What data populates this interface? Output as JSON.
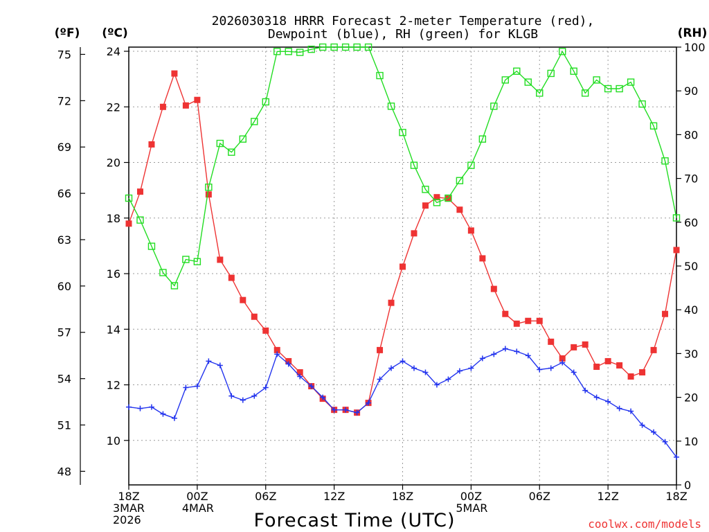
{
  "chart_data": {
    "type": "line",
    "title_line1": "2026030318 HRRR Forecast 2-meter Temperature (red),",
    "title_line2": "Dewpoint (blue), RH (green) for KLGB",
    "xlabel": "Forecast Time (UTC)",
    "credit": "coolwx.com/models",
    "units": {
      "fahrenheit": "(ºF)",
      "celsius": "(ºC)",
      "rh": "(RH)"
    },
    "x_hours": {
      "start": 0,
      "end": 48,
      "step": 1
    },
    "x_ticks": [
      {
        "hour": 0,
        "lines": [
          "18Z",
          "3MAR",
          "2026"
        ]
      },
      {
        "hour": 6,
        "lines": [
          "00Z",
          "4MAR"
        ]
      },
      {
        "hour": 12,
        "lines": [
          "06Z"
        ]
      },
      {
        "hour": 18,
        "lines": [
          "12Z"
        ]
      },
      {
        "hour": 24,
        "lines": [
          "18Z"
        ]
      },
      {
        "hour": 30,
        "lines": [
          "00Z",
          "5MAR"
        ]
      },
      {
        "hour": 36,
        "lines": [
          "06Z"
        ]
      },
      {
        "hour": 42,
        "lines": [
          "12Z"
        ]
      },
      {
        "hour": 48,
        "lines": [
          "18Z"
        ]
      }
    ],
    "celsius_axis": {
      "min": 8.4,
      "max": 24.15,
      "ticks": [
        10,
        12,
        14,
        16,
        18,
        20,
        22,
        24
      ]
    },
    "fahrenheit_ticks": [
      48,
      51,
      54,
      57,
      60,
      63,
      66,
      69,
      72,
      75
    ],
    "rh_axis": {
      "min": 0,
      "max": 100,
      "ticks": [
        0,
        10,
        20,
        30,
        40,
        50,
        60,
        70,
        80,
        90,
        100
      ]
    },
    "colors": {
      "temperature": "#ee3333",
      "dewpoint": "#2233ee",
      "rh": "#22dd22",
      "credit": "#ee3333"
    },
    "series": [
      {
        "name": "Temperature",
        "unit": "C",
        "marker": "filled-square",
        "values": [
          17.8,
          18.95,
          20.65,
          22.0,
          23.2,
          22.05,
          22.25,
          18.85,
          16.5,
          15.85,
          15.05,
          14.45,
          13.95,
          13.25,
          12.85,
          12.45,
          11.95,
          11.5,
          11.1,
          11.1,
          11.0,
          11.35,
          13.25,
          14.95,
          16.25,
          17.45,
          18.45,
          18.75,
          18.7,
          18.3,
          17.55,
          16.55,
          15.45,
          14.55,
          14.2,
          14.3,
          14.3,
          13.55,
          12.95,
          13.35,
          13.45,
          12.65,
          12.85,
          12.7,
          12.3,
          12.45,
          13.25,
          14.55,
          16.85
        ]
      },
      {
        "name": "Dewpoint",
        "unit": "C",
        "marker": "plus",
        "values": [
          11.2,
          11.15,
          11.2,
          10.95,
          10.8,
          11.9,
          11.95,
          12.85,
          12.7,
          11.6,
          11.45,
          11.6,
          11.9,
          13.1,
          12.75,
          12.3,
          11.95,
          11.55,
          11.1,
          11.1,
          11.0,
          11.35,
          12.2,
          12.6,
          12.85,
          12.6,
          12.45,
          12.0,
          12.2,
          12.5,
          12.6,
          12.95,
          13.1,
          13.3,
          13.2,
          13.05,
          12.55,
          12.6,
          12.8,
          12.45,
          11.8,
          11.55,
          11.4,
          11.15,
          11.05,
          10.55,
          10.3,
          9.95,
          9.4
        ]
      },
      {
        "name": "RH",
        "unit": "%",
        "marker": "open-square",
        "values": [
          65.5,
          60.5,
          54.5,
          48.5,
          45.5,
          51.5,
          51.0,
          68.0,
          78.0,
          76.0,
          79.0,
          83.0,
          87.5,
          99.0,
          99.0,
          98.8,
          99.5,
          100.0,
          100.0,
          100.0,
          100.0,
          100.0,
          93.5,
          86.5,
          80.5,
          73.0,
          67.5,
          64.5,
          65.5,
          69.5,
          73.0,
          79.0,
          86.5,
          92.5,
          94.5,
          92.0,
          89.5,
          94.0,
          99.0,
          94.5,
          89.5,
          92.5,
          90.5,
          90.5,
          92.0,
          87.0,
          82.0,
          74.0,
          61.0
        ]
      }
    ]
  }
}
